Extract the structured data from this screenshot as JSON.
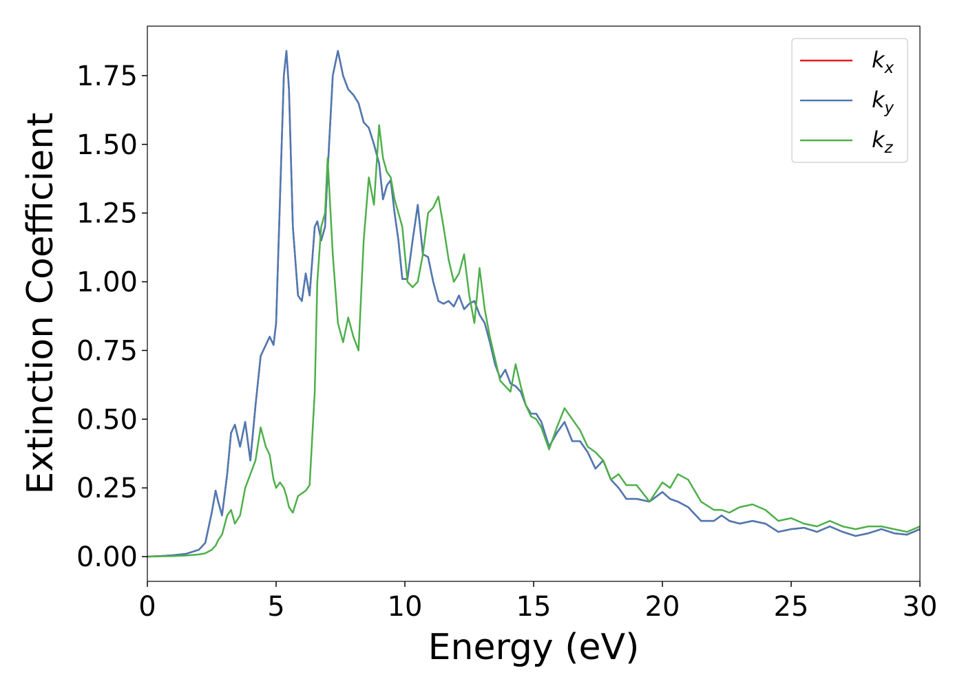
{
  "chart_data": {
    "type": "line",
    "xlabel": "Energy (eV)",
    "ylabel": "Extinction Coefficient",
    "xlim": [
      0,
      30
    ],
    "ylim": [
      -0.09,
      1.93
    ],
    "xticks": [
      0,
      5,
      10,
      15,
      20,
      25,
      30
    ],
    "yticks": [
      {
        "value": 0,
        "label": "0.00"
      },
      {
        "value": 0.25,
        "label": "0.25"
      },
      {
        "value": 0.5,
        "label": "0.50"
      },
      {
        "value": 0.75,
        "label": "0.75"
      },
      {
        "value": 1,
        "label": "1.00"
      },
      {
        "value": 1.25,
        "label": "1.25"
      },
      {
        "value": 1.5,
        "label": "1.50"
      },
      {
        "value": 1.75,
        "label": "1.75"
      }
    ],
    "grid": false,
    "legend": "upper right",
    "x": [
      0,
      0.5,
      1,
      1.5,
      2,
      2.25,
      2.5,
      2.65,
      2.75,
      2.9,
      3.1,
      3.25,
      3.4,
      3.6,
      3.8,
      4.0,
      4.2,
      4.4,
      4.6,
      4.75,
      4.9,
      5.0,
      5.15,
      5.3,
      5.4,
      5.5,
      5.65,
      5.85,
      6.0,
      6.15,
      6.3,
      6.5,
      6.6,
      6.75,
      6.9,
      7.0,
      7.2,
      7.4,
      7.6,
      7.8,
      8.0,
      8.2,
      8.4,
      8.6,
      8.8,
      9.0,
      9.15,
      9.3,
      9.45,
      9.6,
      9.75,
      9.9,
      10.1,
      10.3,
      10.5,
      10.7,
      10.9,
      11.1,
      11.3,
      11.5,
      11.7,
      11.9,
      12.1,
      12.3,
      12.5,
      12.7,
      12.9,
      13.1,
      13.3,
      13.5,
      13.7,
      13.9,
      14.1,
      14.3,
      14.5,
      14.7,
      14.9,
      15.1,
      15.3,
      15.6,
      15.9,
      16.2,
      16.5,
      16.8,
      17.1,
      17.4,
      17.7,
      18.0,
      18.3,
      18.6,
      19.0,
      19.5,
      20.0,
      20.3,
      20.6,
      21.0,
      21.5,
      22.0,
      22.3,
      22.6,
      23.0,
      23.5,
      24.0,
      24.5,
      25.0,
      25.5,
      26.0,
      26.5,
      27.0,
      27.5,
      28.0,
      28.5,
      29.0,
      29.5,
      30.0
    ],
    "series": [
      {
        "name": "kx",
        "color": "#e41a1c",
        "values": [
          0,
          0.002,
          0.005,
          0.01,
          0.025,
          0.05,
          0.16,
          0.24,
          0.2,
          0.15,
          0.3,
          0.45,
          0.48,
          0.4,
          0.49,
          0.35,
          0.55,
          0.73,
          0.77,
          0.8,
          0.77,
          0.85,
          1.3,
          1.75,
          1.84,
          1.7,
          1.2,
          0.95,
          0.93,
          1.03,
          0.95,
          1.2,
          1.22,
          1.15,
          1.2,
          1.4,
          1.75,
          1.84,
          1.75,
          1.7,
          1.68,
          1.65,
          1.58,
          1.56,
          1.5,
          1.43,
          1.3,
          1.35,
          1.37,
          1.25,
          1.15,
          1.01,
          1.01,
          1.15,
          1.28,
          1.1,
          1.09,
          1.0,
          0.93,
          0.92,
          0.93,
          0.91,
          0.95,
          0.9,
          0.92,
          0.93,
          0.88,
          0.85,
          0.78,
          0.7,
          0.65,
          0.68,
          0.63,
          0.62,
          0.6,
          0.55,
          0.52,
          0.52,
          0.49,
          0.4,
          0.45,
          0.49,
          0.42,
          0.42,
          0.38,
          0.32,
          0.35,
          0.28,
          0.25,
          0.21,
          0.21,
          0.2,
          0.235,
          0.21,
          0.2,
          0.18,
          0.13,
          0.13,
          0.15,
          0.13,
          0.12,
          0.13,
          0.12,
          0.09,
          0.1,
          0.105,
          0.09,
          0.11,
          0.09,
          0.075,
          0.085,
          0.1,
          0.085,
          0.08,
          0.1
        ]
      },
      {
        "name": "ky",
        "color": "#4a7ab5",
        "values": [
          0,
          0.002,
          0.005,
          0.01,
          0.025,
          0.05,
          0.16,
          0.24,
          0.2,
          0.15,
          0.3,
          0.45,
          0.48,
          0.4,
          0.49,
          0.35,
          0.55,
          0.73,
          0.77,
          0.8,
          0.77,
          0.85,
          1.3,
          1.75,
          1.84,
          1.7,
          1.2,
          0.95,
          0.93,
          1.03,
          0.95,
          1.2,
          1.22,
          1.15,
          1.2,
          1.4,
          1.75,
          1.84,
          1.75,
          1.7,
          1.68,
          1.65,
          1.58,
          1.56,
          1.5,
          1.43,
          1.3,
          1.35,
          1.37,
          1.25,
          1.15,
          1.01,
          1.01,
          1.15,
          1.28,
          1.1,
          1.09,
          1.0,
          0.93,
          0.92,
          0.93,
          0.91,
          0.95,
          0.9,
          0.92,
          0.93,
          0.88,
          0.85,
          0.78,
          0.7,
          0.65,
          0.68,
          0.63,
          0.62,
          0.6,
          0.55,
          0.52,
          0.52,
          0.49,
          0.4,
          0.45,
          0.49,
          0.42,
          0.42,
          0.38,
          0.32,
          0.35,
          0.28,
          0.25,
          0.21,
          0.21,
          0.2,
          0.235,
          0.21,
          0.2,
          0.18,
          0.13,
          0.13,
          0.15,
          0.13,
          0.12,
          0.13,
          0.12,
          0.09,
          0.1,
          0.105,
          0.09,
          0.11,
          0.09,
          0.075,
          0.085,
          0.1,
          0.085,
          0.08,
          0.1
        ]
      },
      {
        "name": "kz",
        "color": "#4daf4a",
        "values": [
          0,
          0.001,
          0.002,
          0.004,
          0.008,
          0.012,
          0.025,
          0.04,
          0.06,
          0.08,
          0.15,
          0.17,
          0.12,
          0.15,
          0.25,
          0.3,
          0.35,
          0.47,
          0.4,
          0.37,
          0.28,
          0.25,
          0.27,
          0.25,
          0.22,
          0.18,
          0.16,
          0.22,
          0.23,
          0.24,
          0.26,
          0.6,
          1.0,
          1.2,
          1.25,
          1.45,
          1.1,
          0.85,
          0.78,
          0.87,
          0.8,
          0.75,
          1.15,
          1.38,
          1.28,
          1.57,
          1.45,
          1.4,
          1.38,
          1.3,
          1.25,
          1.2,
          1.0,
          0.98,
          1.0,
          1.1,
          1.25,
          1.27,
          1.31,
          1.2,
          1.08,
          1.0,
          1.03,
          1.1,
          0.95,
          0.85,
          1.05,
          0.9,
          0.8,
          0.72,
          0.64,
          0.62,
          0.6,
          0.7,
          0.62,
          0.55,
          0.51,
          0.5,
          0.47,
          0.39,
          0.47,
          0.54,
          0.5,
          0.46,
          0.4,
          0.38,
          0.35,
          0.28,
          0.3,
          0.26,
          0.26,
          0.2,
          0.27,
          0.25,
          0.3,
          0.28,
          0.2,
          0.17,
          0.17,
          0.16,
          0.18,
          0.19,
          0.17,
          0.13,
          0.14,
          0.12,
          0.11,
          0.13,
          0.11,
          0.1,
          0.11,
          0.11,
          0.1,
          0.09,
          0.11
        ]
      }
    ]
  }
}
